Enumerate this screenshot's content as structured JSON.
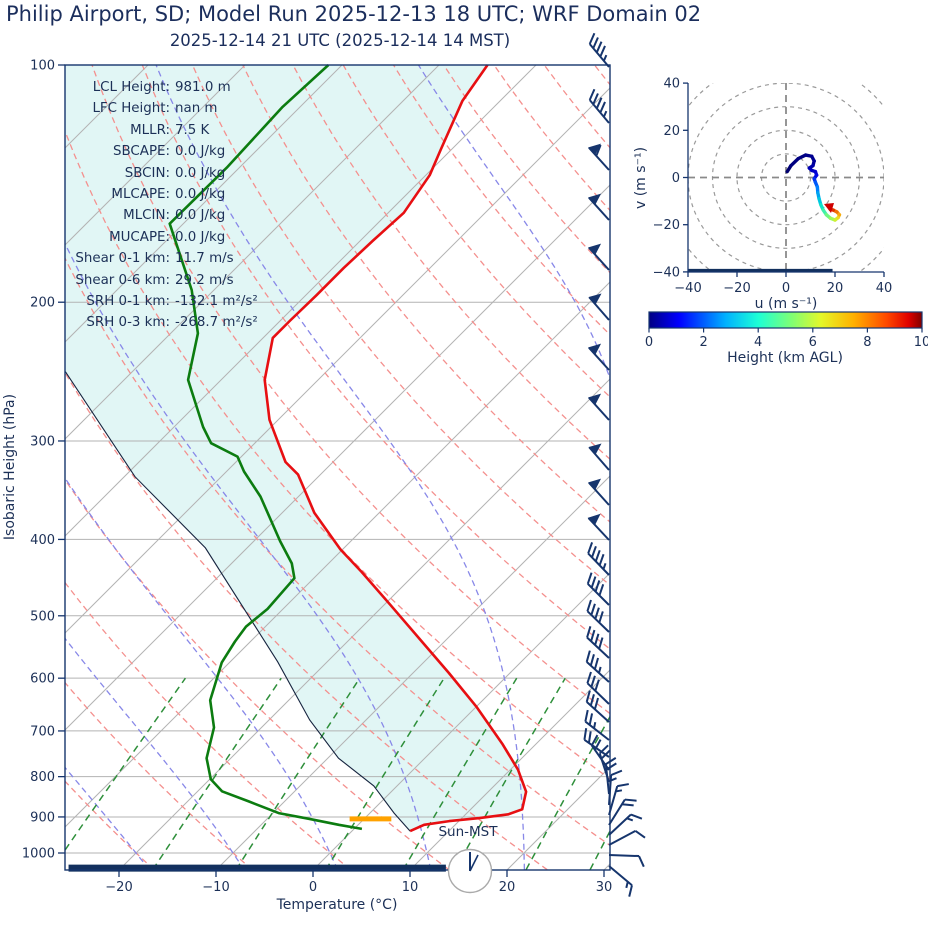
{
  "header": {
    "title": "Philip Airport, SD; Model Run 2025-12-13 18 UTC; WRF Domain 02",
    "subtitle": "2025-12-14 21 UTC  (2025-12-14 14 MST)"
  },
  "stats": {
    "rows": [
      {
        "label": "LCL Height:",
        "value": "981.0 m"
      },
      {
        "label": "LFC Height:",
        "value": "nan m"
      },
      {
        "label": "MLLR:",
        "value": "7.5 K"
      },
      {
        "label": "SBCAPE:",
        "value": "0.0 J/kg"
      },
      {
        "label": "SBCIN:",
        "value": "0.0 J/kg"
      },
      {
        "label": "MLCAPE:",
        "value": "0.0 J/kg"
      },
      {
        "label": "MLCIN:",
        "value": "0.0 J/kg"
      },
      {
        "label": "MUCAPE:",
        "value": "0.0 J/kg"
      },
      {
        "label": "Shear 0-1 km:",
        "value": "11.7 m/s"
      },
      {
        "label": "Shear 0-6 km:",
        "value": "29.2 m/s"
      },
      {
        "label": "SRH 0-1 km:",
        "value": "-132.1 m²/s²"
      },
      {
        "label": "SRH 0-3 km:",
        "value": "-268.7 m²/s²"
      }
    ]
  },
  "skewt": {
    "ylabel": "Isobaric Height (hPa)",
    "xlabel": "Temperature (°C)",
    "sun_label": "Sun-MST",
    "y_ticks": [
      100,
      200,
      300,
      400,
      500,
      600,
      700,
      800,
      900,
      1000
    ],
    "x_ticks": [
      -20,
      -10,
      0,
      10,
      20,
      30
    ]
  },
  "hodograph": {
    "xlabel": "u (m s⁻¹)",
    "ylabel": "v (m s⁻¹)",
    "x_ticks": [
      -40,
      -20,
      0,
      20,
      40
    ],
    "y_ticks": [
      -40,
      -20,
      0,
      20,
      40
    ],
    "ring_radii": [
      10,
      20,
      30,
      40,
      50
    ]
  },
  "colorbar": {
    "label": "Height (km AGL)",
    "ticks": [
      0,
      2,
      4,
      6,
      8,
      10
    ],
    "stops": [
      [
        "0%",
        "#000083"
      ],
      [
        "11%",
        "#0000ff"
      ],
      [
        "28%",
        "#00b0ff"
      ],
      [
        "40%",
        "#1cffd6"
      ],
      [
        "52%",
        "#7dff76"
      ],
      [
        "63%",
        "#e4f829"
      ],
      [
        "75%",
        "#ffb000"
      ],
      [
        "87%",
        "#ff4900"
      ],
      [
        "95%",
        "#e00000"
      ],
      [
        "100%",
        "#800000"
      ]
    ]
  },
  "colors": {
    "navy": "#16356d",
    "text": "#1c3057",
    "temperature": "#e70f12",
    "dewpoint": "#0c7c10",
    "parcel": "#16243f",
    "shade": "#e1f6f5",
    "grid": "#b3b3b3",
    "dry_adiabat": "#f4908e",
    "moist_adiabat": "#8888e8",
    "mixing_line": "#2e8f3a",
    "lcl_bar": "#ffa200",
    "ring": "#9a9a9a"
  },
  "chart_data": {
    "type": "skewt-log-p sounding with hodograph",
    "pressure_axis_hPa": [
      100,
      1051
    ],
    "temperature_axis_C": [
      -25,
      34
    ],
    "skew_deg": 45,
    "isobars_hPa": [
      200,
      300,
      400,
      500,
      600,
      700,
      800,
      900,
      1000
    ],
    "isotherms_C": {
      "min": -110,
      "max": 40,
      "step": 10
    },
    "dry_adiabats_C": {
      "min": -30,
      "max": 250,
      "step": 10
    },
    "moist_adiabats_start_C": {
      "min": -40,
      "max": 120,
      "step": 10
    },
    "mixing_ratios_g_kg": [
      0.4,
      1,
      2,
      4,
      7,
      10,
      16,
      24,
      32
    ],
    "temperature_profile": [
      [
        100,
        -65.0
      ],
      [
        111,
        -63.9
      ],
      [
        128,
        -61.1
      ],
      [
        138,
        -59.6
      ],
      [
        154,
        -58.4
      ],
      [
        167,
        -58.7
      ],
      [
        181,
        -58.9
      ],
      [
        196,
        -58.9
      ],
      [
        211,
        -59.0
      ],
      [
        222,
        -59.0
      ],
      [
        251,
        -55.5
      ],
      [
        282,
        -50.9
      ],
      [
        319,
        -44.9
      ],
      [
        331,
        -42.3
      ],
      [
        370,
        -36.7
      ],
      [
        412,
        -30.2
      ],
      [
        440,
        -25.7
      ],
      [
        484,
        -19.4
      ],
      [
        536,
        -12.7
      ],
      [
        591,
        -6.3
      ],
      [
        653,
        0.1
      ],
      [
        728,
        6.6
      ],
      [
        784,
        10.8
      ],
      [
        836,
        13.9
      ],
      [
        880,
        15.3
      ],
      [
        893,
        14.4
      ],
      [
        903,
        11.8
      ],
      [
        911,
        9.0
      ],
      [
        921,
        6.8
      ],
      [
        938,
        6.0
      ]
    ],
    "dewpoint_profile": [
      [
        100,
        -81.4
      ],
      [
        113,
        -81.8
      ],
      [
        135,
        -81.3
      ],
      [
        159,
        -81.4
      ],
      [
        193,
        -72.3
      ],
      [
        219,
        -67.2
      ],
      [
        251,
        -63.4
      ],
      [
        288,
        -57.0
      ],
      [
        302,
        -54.5
      ],
      [
        314,
        -50.4
      ],
      [
        328,
        -48.2
      ],
      [
        353,
        -43.9
      ],
      [
        402,
        -37.3
      ],
      [
        429,
        -33.8
      ],
      [
        448,
        -32.0
      ],
      [
        490,
        -31.6
      ],
      [
        516,
        -32.0
      ],
      [
        539,
        -31.6
      ],
      [
        573,
        -30.8
      ],
      [
        640,
        -28.1
      ],
      [
        693,
        -24.9
      ],
      [
        758,
        -22.5
      ],
      [
        806,
        -19.9
      ],
      [
        835,
        -17.5
      ],
      [
        860,
        -13.7
      ],
      [
        890,
        -9.4
      ],
      [
        905,
        -5.7
      ],
      [
        921,
        -2.0
      ],
      [
        932,
        0.8
      ]
    ],
    "parcel_profile": [
      [
        245,
        -76.9
      ],
      [
        333,
        -58.9
      ],
      [
        410,
        -44.3
      ],
      [
        572,
        -25.1
      ],
      [
        678,
        -15.8
      ],
      [
        758,
        -8.9
      ],
      [
        822,
        -2.4
      ],
      [
        890,
        2.5
      ],
      [
        938,
        6.0
      ]
    ],
    "lcl_bar": {
      "pressure": 905,
      "t_min": -1.5,
      "t_max": 2.8
    },
    "surface_bar": {
      "pressure": 1045,
      "t_min": -25.4,
      "t_max": 13.5
    },
    "wind_barbs": [
      {
        "y": 67,
        "rot": -40,
        "f": 0,
        "b": 4,
        "h": 1
      },
      {
        "y": 123,
        "rot": -40,
        "f": 0,
        "b": 4,
        "h": 1
      },
      {
        "y": 170,
        "rot": -42,
        "f": 1,
        "b": 1,
        "h": 0
      },
      {
        "y": 220,
        "rot": -42,
        "f": 1,
        "b": 0,
        "h": 0
      },
      {
        "y": 270,
        "rot": -42,
        "f": 1,
        "b": 0,
        "h": 0
      },
      {
        "y": 320,
        "rot": -41,
        "f": 1,
        "b": 0,
        "h": 0
      },
      {
        "y": 370,
        "rot": -42,
        "f": 1,
        "b": 0,
        "h": 0
      },
      {
        "y": 420,
        "rot": -42,
        "f": 1,
        "b": 0,
        "h": 0
      },
      {
        "y": 470,
        "rot": -41,
        "f": 1,
        "b": 0,
        "h": 0
      },
      {
        "y": 505,
        "rot": -42,
        "f": 1,
        "b": 0,
        "h": 0
      },
      {
        "y": 540,
        "rot": -43,
        "f": 1,
        "b": 0,
        "h": 0
      },
      {
        "y": 575,
        "rot": -44,
        "f": 0,
        "b": 4,
        "h": 1
      },
      {
        "y": 605,
        "rot": -45,
        "f": 0,
        "b": 4,
        "h": 0
      },
      {
        "y": 632,
        "rot": -46,
        "f": 0,
        "b": 4,
        "h": 0
      },
      {
        "y": 658,
        "rot": -47,
        "f": 0,
        "b": 4,
        "h": 0
      },
      {
        "y": 682,
        "rot": -48,
        "f": 0,
        "b": 3,
        "h": 1
      },
      {
        "y": 704,
        "rot": -46,
        "f": 0,
        "b": 3,
        "h": 0
      },
      {
        "y": 722,
        "rot": -48,
        "f": 0,
        "b": 3,
        "h": 0
      },
      {
        "y": 740,
        "rot": -52,
        "f": 0,
        "b": 2,
        "h": 1
      },
      {
        "y": 757,
        "rot": -55,
        "f": 0,
        "b": 2,
        "h": 0
      },
      {
        "y": 770,
        "rot": -35,
        "f": 0,
        "b": 2,
        "h": 0
      },
      {
        "y": 782,
        "rot": -18,
        "f": 0,
        "b": 2,
        "h": 0
      },
      {
        "y": 794,
        "rot": -6,
        "f": 0,
        "b": 2,
        "h": 0
      },
      {
        "y": 805,
        "rot": 4,
        "f": 0,
        "b": 1,
        "h": 1
      },
      {
        "y": 815,
        "rot": 16,
        "f": 0,
        "b": 1,
        "h": 1
      },
      {
        "y": 825,
        "rot": 32,
        "f": 0,
        "b": 2,
        "h": 0
      },
      {
        "y": 835,
        "rot": 47,
        "f": 0,
        "b": 1,
        "h": 1
      },
      {
        "y": 845,
        "rot": 62,
        "f": 0,
        "b": 1,
        "h": 0
      },
      {
        "y": 855,
        "rot": 92,
        "f": 0,
        "b": 1,
        "h": 0
      },
      {
        "y": 866,
        "rot": 130,
        "f": 0,
        "b": 1,
        "h": 1
      }
    ],
    "hodograph_trace": [
      [
        0.5,
        2.5,
        "#00006e"
      ],
      [
        2,
        5,
        "#00006e"
      ],
      [
        5,
        8,
        "#000080"
      ],
      [
        8,
        9.5,
        "#000080"
      ],
      [
        10.5,
        9,
        "#000088"
      ],
      [
        11.5,
        7,
        "#000090"
      ],
      [
        11,
        5,
        "#000098"
      ],
      [
        9.5,
        4,
        "#0000a8"
      ],
      [
        10.5,
        3,
        "#0000b4"
      ],
      [
        12,
        2.5,
        "#0000c0"
      ],
      [
        12.5,
        1,
        "#0000d0"
      ],
      [
        11.5,
        -0.5,
        "#0008e0"
      ],
      [
        12,
        -2,
        "#0030f0"
      ],
      [
        12.8,
        -4,
        "#0058f8"
      ],
      [
        13,
        -6.5,
        "#0080ff"
      ],
      [
        13.5,
        -9,
        "#00a4f0"
      ],
      [
        14.2,
        -11.5,
        "#00c8e0"
      ],
      [
        15.2,
        -13.8,
        "#10e4c8"
      ],
      [
        16.5,
        -15.8,
        "#40f0a8"
      ],
      [
        18.2,
        -17.3,
        "#70f880"
      ],
      [
        20,
        -18,
        "#a0f858"
      ],
      [
        21.3,
        -17,
        "#d0f030"
      ],
      [
        21.8,
        -15.8,
        "#f0d820"
      ],
      [
        20.8,
        -14.6,
        "#f8a810"
      ],
      [
        19.3,
        -13.8,
        "#f07008"
      ],
      [
        18,
        -13.4,
        "#e03000"
      ]
    ],
    "hodograph_arrow": {
      "points": [
        [
          824,
          204
        ],
        [
          834,
          203
        ],
        [
          831,
          213
        ]
      ],
      "color": "#cf0000"
    },
    "hodograph_ground_bar": {
      "v": -40,
      "u_from": -40,
      "u_to": 19
    }
  }
}
